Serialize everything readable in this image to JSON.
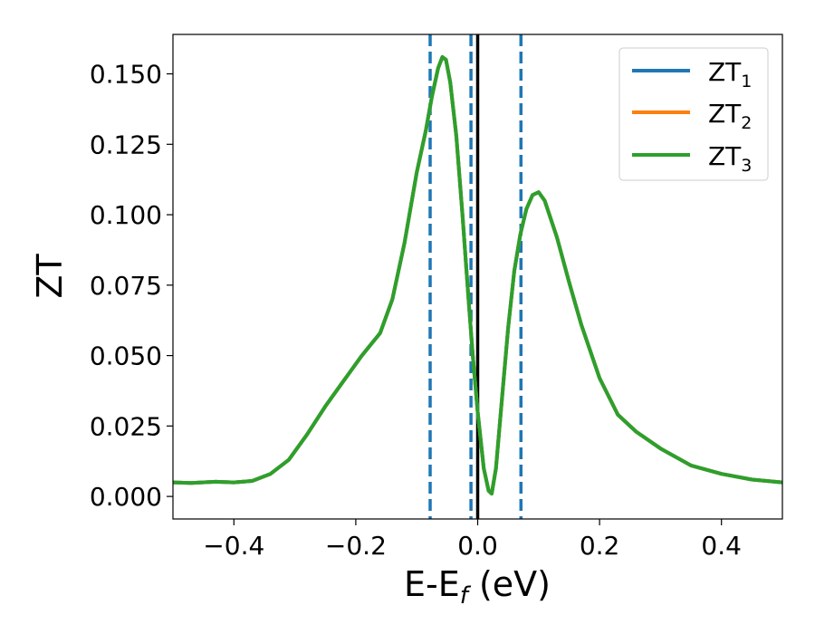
{
  "chart_data": {
    "type": "line",
    "xlabel": "E-E",
    "xlabel_sub": "f",
    "xlabel_unit": " (eV)",
    "ylabel": "ZT",
    "xlim": [
      -0.5,
      0.5
    ],
    "ylim": [
      -0.008,
      0.164
    ],
    "xticks": [
      -0.4,
      -0.2,
      0.0,
      0.2,
      0.4
    ],
    "xtick_labels": [
      "−0.4",
      "−0.2",
      "0.0",
      "0.2",
      "0.4"
    ],
    "yticks": [
      0.0,
      0.025,
      0.05,
      0.075,
      0.1,
      0.125,
      0.15
    ],
    "ytick_labels": [
      "0.000",
      "0.025",
      "0.050",
      "0.075",
      "0.100",
      "0.125",
      "0.150"
    ],
    "grid": false,
    "legend_position": "top-right",
    "vertical_lines": [
      {
        "x": 0.0,
        "color": "#000000",
        "style": "solid"
      },
      {
        "x": -0.078,
        "color": "#1f77b4",
        "style": "dashed"
      },
      {
        "x": -0.011,
        "color": "#1f77b4",
        "style": "dashed"
      },
      {
        "x": 0.071,
        "color": "#1f77b4",
        "style": "dashed"
      }
    ],
    "x": [
      -0.5,
      -0.47,
      -0.43,
      -0.4,
      -0.37,
      -0.34,
      -0.31,
      -0.28,
      -0.25,
      -0.22,
      -0.19,
      -0.16,
      -0.14,
      -0.12,
      -0.1,
      -0.085,
      -0.075,
      -0.065,
      -0.058,
      -0.052,
      -0.045,
      -0.035,
      -0.025,
      -0.015,
      -0.008,
      0.0,
      0.01,
      0.018,
      0.023,
      0.03,
      0.04,
      0.05,
      0.06,
      0.07,
      0.08,
      0.09,
      0.1,
      0.11,
      0.13,
      0.15,
      0.17,
      0.2,
      0.23,
      0.26,
      0.3,
      0.35,
      0.4,
      0.45,
      0.5
    ],
    "series": [
      {
        "name": "ZT",
        "name_sub": "1",
        "color": "#1f77b4",
        "values": [
          0.005,
          0.0048,
          0.0052,
          0.005,
          0.0055,
          0.008,
          0.013,
          0.022,
          0.032,
          0.041,
          0.05,
          0.058,
          0.07,
          0.09,
          0.115,
          0.13,
          0.142,
          0.152,
          0.156,
          0.155,
          0.147,
          0.128,
          0.1,
          0.07,
          0.05,
          0.03,
          0.01,
          0.002,
          0.001,
          0.01,
          0.035,
          0.06,
          0.08,
          0.093,
          0.102,
          0.107,
          0.108,
          0.105,
          0.092,
          0.076,
          0.061,
          0.042,
          0.029,
          0.023,
          0.017,
          0.011,
          0.008,
          0.006,
          0.005
        ]
      },
      {
        "name": "ZT",
        "name_sub": "2",
        "color": "#ff7f0e",
        "values": [
          0.005,
          0.0048,
          0.0052,
          0.005,
          0.0055,
          0.008,
          0.013,
          0.022,
          0.032,
          0.041,
          0.05,
          0.058,
          0.07,
          0.09,
          0.115,
          0.13,
          0.142,
          0.152,
          0.156,
          0.155,
          0.147,
          0.128,
          0.1,
          0.07,
          0.05,
          0.03,
          0.01,
          0.002,
          0.001,
          0.01,
          0.035,
          0.06,
          0.08,
          0.093,
          0.102,
          0.107,
          0.108,
          0.105,
          0.092,
          0.076,
          0.061,
          0.042,
          0.029,
          0.023,
          0.017,
          0.011,
          0.008,
          0.006,
          0.005
        ]
      },
      {
        "name": "ZT",
        "name_sub": "3",
        "color": "#2ca02c",
        "values": [
          0.005,
          0.0048,
          0.0052,
          0.005,
          0.0055,
          0.008,
          0.013,
          0.022,
          0.032,
          0.041,
          0.05,
          0.058,
          0.07,
          0.09,
          0.115,
          0.13,
          0.142,
          0.152,
          0.156,
          0.155,
          0.147,
          0.128,
          0.1,
          0.07,
          0.05,
          0.03,
          0.01,
          0.002,
          0.001,
          0.01,
          0.035,
          0.06,
          0.08,
          0.093,
          0.102,
          0.107,
          0.108,
          0.105,
          0.092,
          0.076,
          0.061,
          0.042,
          0.029,
          0.023,
          0.017,
          0.011,
          0.008,
          0.006,
          0.005
        ]
      }
    ]
  }
}
